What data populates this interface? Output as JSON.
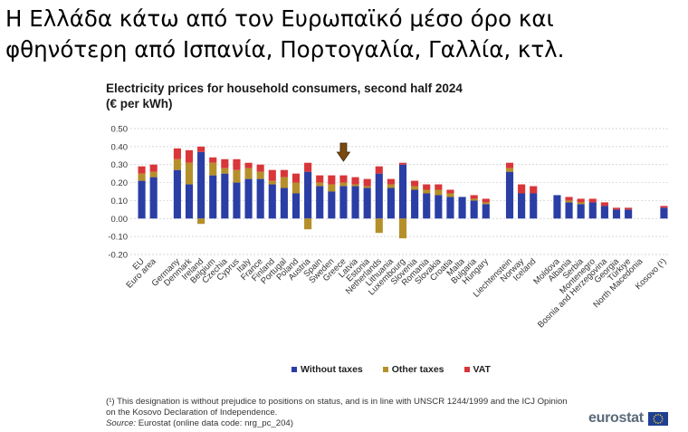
{
  "headline": {
    "line1": "Η Ελλάδα κάτω από τον Ευρωπαϊκό μέσο όρο και",
    "line2": "φθηνότερη από Ισπανία, Πορτογαλία, Γαλλία, κτλ."
  },
  "chart_data": {
    "type": "bar",
    "stacked": true,
    "title": "Electricity prices for household consumers, second half 2024",
    "subtitle": "(€ per kWh)",
    "ylim": [
      -0.2,
      0.5
    ],
    "yticks": [
      "-0.20",
      "-0.10",
      "0.00",
      "0.10",
      "0.20",
      "0.30",
      "0.40",
      "0.50"
    ],
    "grid": true,
    "legend_position": "bottom",
    "highlight_category": "Greece",
    "categories": [
      "EU",
      "Euro area",
      "",
      "Germany",
      "Denmark",
      "Ireland",
      "Belgium",
      "Czechia",
      "Cyprus",
      "Italy",
      "France",
      "Finland",
      "Portugal",
      "Poland",
      "Austria",
      "Spain",
      "Sweden",
      "Greece",
      "Latvia",
      "Estonia",
      "Netherlands",
      "Lithuania",
      "Luxembourg",
      "Slovenia",
      "Romania",
      "Slovakia",
      "Croatia",
      "Malta",
      "Bulgaria",
      "Hungary",
      "",
      "Liechtenstein",
      "Norway",
      "Iceland",
      "",
      "Moldova",
      "Albania",
      "Serbia",
      "Montenegro",
      "Bosnia and Herzegovina",
      "Georgia",
      "Türkiye",
      "North Macedonia",
      "",
      "Kosovo (¹)"
    ],
    "series": [
      {
        "name": "Without taxes",
        "color": "#2a3ea5",
        "values": [
          0.21,
          0.23,
          null,
          0.27,
          0.19,
          0.37,
          0.24,
          0.25,
          0.2,
          0.22,
          0.22,
          0.19,
          0.17,
          0.14,
          0.26,
          0.18,
          0.15,
          0.18,
          0.18,
          0.17,
          0.25,
          0.17,
          0.3,
          0.16,
          0.14,
          0.13,
          0.12,
          0.12,
          0.1,
          0.08,
          null,
          0.26,
          0.14,
          0.14,
          null,
          0.13,
          0.09,
          0.08,
          0.09,
          0.07,
          0.05,
          0.05,
          null,
          null,
          0.06
        ]
      },
      {
        "name": "Other taxes",
        "color": "#b5902a",
        "values": [
          0.04,
          0.03,
          null,
          0.06,
          0.12,
          -0.03,
          0.07,
          0.03,
          0.07,
          0.06,
          0.04,
          0.02,
          0.06,
          0.06,
          -0.06,
          0.02,
          0.04,
          0.02,
          0.01,
          0.01,
          -0.08,
          0.02,
          -0.11,
          0.02,
          0.02,
          0.03,
          0.02,
          0.0,
          0.01,
          0.01,
          null,
          0.02,
          0.0,
          0.0,
          null,
          0.0,
          0.01,
          0.01,
          0.0,
          0.0,
          0.0,
          0.0,
          null,
          null,
          0.0
        ]
      },
      {
        "name": "VAT",
        "color": "#d9363a",
        "values": [
          0.04,
          0.04,
          null,
          0.06,
          0.07,
          0.03,
          0.03,
          0.05,
          0.06,
          0.03,
          0.04,
          0.06,
          0.04,
          0.05,
          0.05,
          0.04,
          0.05,
          0.04,
          0.04,
          0.04,
          0.04,
          0.03,
          0.01,
          0.03,
          0.03,
          0.03,
          0.02,
          0.0,
          0.02,
          0.02,
          null,
          0.03,
          0.05,
          0.04,
          null,
          0.0,
          0.02,
          0.02,
          0.02,
          0.02,
          0.01,
          0.01,
          null,
          null,
          0.01
        ]
      }
    ]
  },
  "legend": {
    "without_taxes": "Without taxes",
    "other_taxes": "Other taxes",
    "vat": "VAT"
  },
  "footnote": "(¹) This designation is without prejudice to positions on status, and is in line with UNSCR 1244/1999 and the ICJ Opinion on the Kosovo Declaration of Independence.",
  "source": {
    "label": "Source:",
    "text": "Eurostat (online data code: nrg_pc_204)"
  },
  "logo": {
    "text": "eurostat"
  }
}
